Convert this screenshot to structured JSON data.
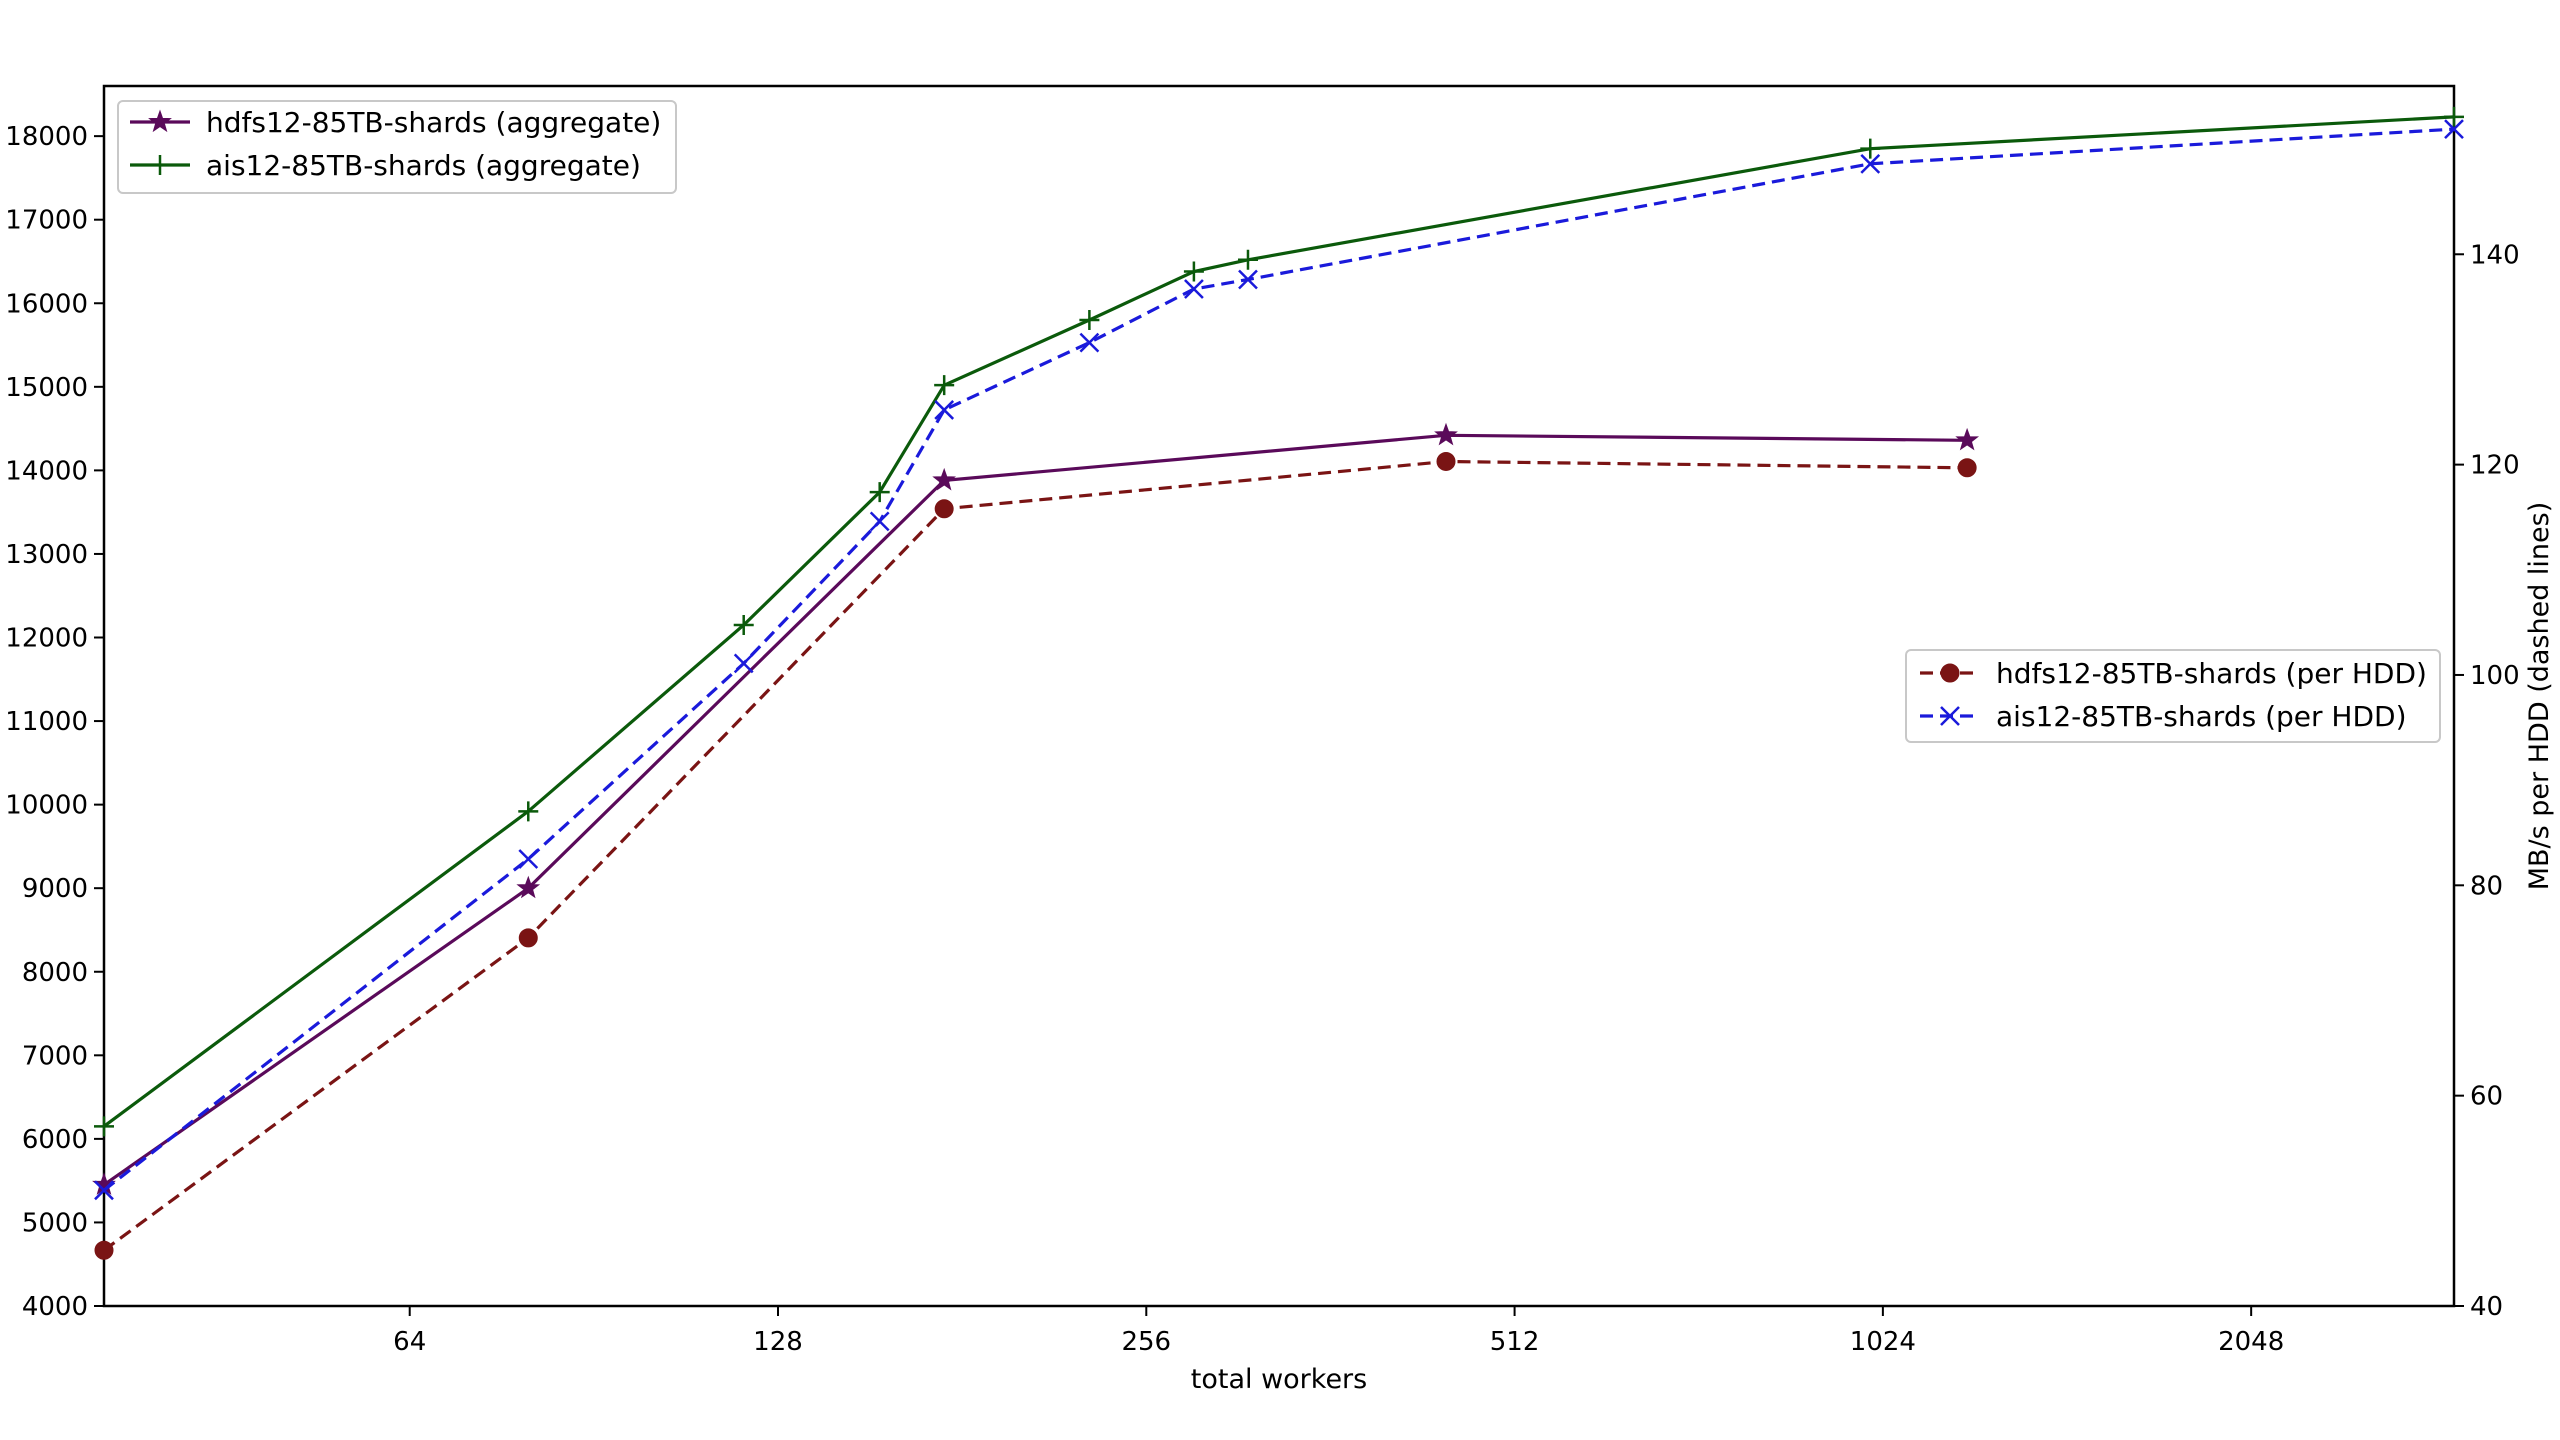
{
  "chart_data": {
    "type": "line",
    "x_scale": "log2",
    "x_ticks": [
      64,
      128,
      256,
      512,
      1024,
      2048
    ],
    "xlim": [
      36,
      3000
    ],
    "xlabel": "total workers",
    "ylabel_left": "",
    "ylabel_right": "MB/s per HDD (dashed lines)",
    "ylim_left": [
      4000,
      18600
    ],
    "y_ticks_left": [
      4000,
      5000,
      6000,
      7000,
      8000,
      9000,
      10000,
      11000,
      12000,
      13000,
      14000,
      15000,
      16000,
      17000,
      18000
    ],
    "ylim_right": [
      40,
      156
    ],
    "y_ticks_right": [
      40,
      60,
      80,
      100,
      120,
      140
    ],
    "grid": false,
    "legends": [
      {
        "placement": "top-left",
        "entries": [
          "hdfs12-85TB-shards (aggregate)",
          "ais12-85TB-shards (aggregate)"
        ]
      },
      {
        "placement": "center-right",
        "entries": [
          "hdfs12-85TB-shards (per HDD)",
          "ais12-85TB-shards (per HDD)"
        ]
      }
    ],
    "series": [
      {
        "name": "hdfs12-85TB-shards (aggregate)",
        "axis": "left",
        "color": "#5a0a5a",
        "linestyle": "solid",
        "marker": "star",
        "x": [
          36,
          80,
          175,
          450,
          1200
        ],
        "y": [
          5450,
          9000,
          13880,
          14420,
          14360
        ]
      },
      {
        "name": "ais12-85TB-shards (aggregate)",
        "axis": "left",
        "color": "#0b5a0b",
        "linestyle": "solid",
        "marker": "plus",
        "x": [
          36,
          80,
          120,
          155,
          175,
          230,
          280,
          310,
          1000,
          3000
        ],
        "y": [
          6150,
          9920,
          12150,
          13740,
          15020,
          15800,
          16380,
          16520,
          17850,
          18230
        ]
      },
      {
        "name": "hdfs12-85TB-shards (per HDD)",
        "axis": "right",
        "color": "#7a1414",
        "linestyle": "dashed",
        "marker": "circle",
        "x": [
          36,
          80,
          175,
          450,
          1200
        ],
        "y": [
          45.3,
          75,
          115.8,
          120.3,
          119.7
        ]
      },
      {
        "name": "ais12-85TB-shards (per HDD)",
        "axis": "right",
        "color": "#1a1adb",
        "linestyle": "dashed",
        "marker": "x",
        "x": [
          36,
          80,
          120,
          155,
          175,
          230,
          280,
          310,
          1000,
          3000
        ],
        "y": [
          51,
          82.5,
          101.1,
          114.6,
          125.2,
          131.6,
          136.7,
          137.6,
          148.6,
          151.9
        ]
      }
    ]
  }
}
